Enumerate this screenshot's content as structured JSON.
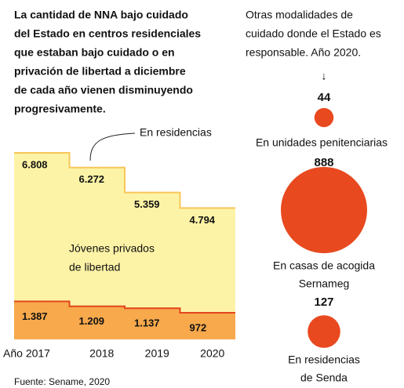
{
  "chart_data": [
    {
      "type": "step-area",
      "description": [
        "La cantidad de NNA bajo cuidado",
        "del Estado en centros residenciales",
        "que estaban bajo cuidado o en",
        "privación de libertad a diciembre",
        "de cada año vienen disminuyendo",
        "progresivamente."
      ],
      "categories": [
        "Año 2017",
        "2018",
        "2019",
        "2020"
      ],
      "series": [
        {
          "name": "En residencias",
          "color": "#fdf3a6",
          "line_color": "#f7c65a",
          "values": [
            6808,
            6272,
            5359,
            4794
          ],
          "value_labels": [
            "6.808",
            "6.272",
            "5.359",
            "4.794"
          ]
        },
        {
          "name": [
            "Jóvenes privados",
            "de libertad"
          ],
          "color": "#f7a94c",
          "line_color": "#e2461d",
          "values": [
            1387,
            1209,
            1137,
            972
          ],
          "value_labels": [
            "1.387",
            "1.209",
            "1.137",
            "972"
          ]
        }
      ],
      "source": "Fuente: Sename, 2020"
    },
    {
      "type": "bubble",
      "description": [
        "Otras modalidades de",
        "cuidado donde el Estado es",
        "responsable. Año 2020."
      ],
      "arrow": "↓",
      "categories": [
        [
          "En unidades penitenciarias"
        ],
        [
          "En casas de acogida",
          "Sernameg"
        ],
        [
          "En residencias",
          "de Senda"
        ]
      ],
      "values": [
        44,
        888,
        127
      ],
      "color": "#e8491f"
    }
  ]
}
